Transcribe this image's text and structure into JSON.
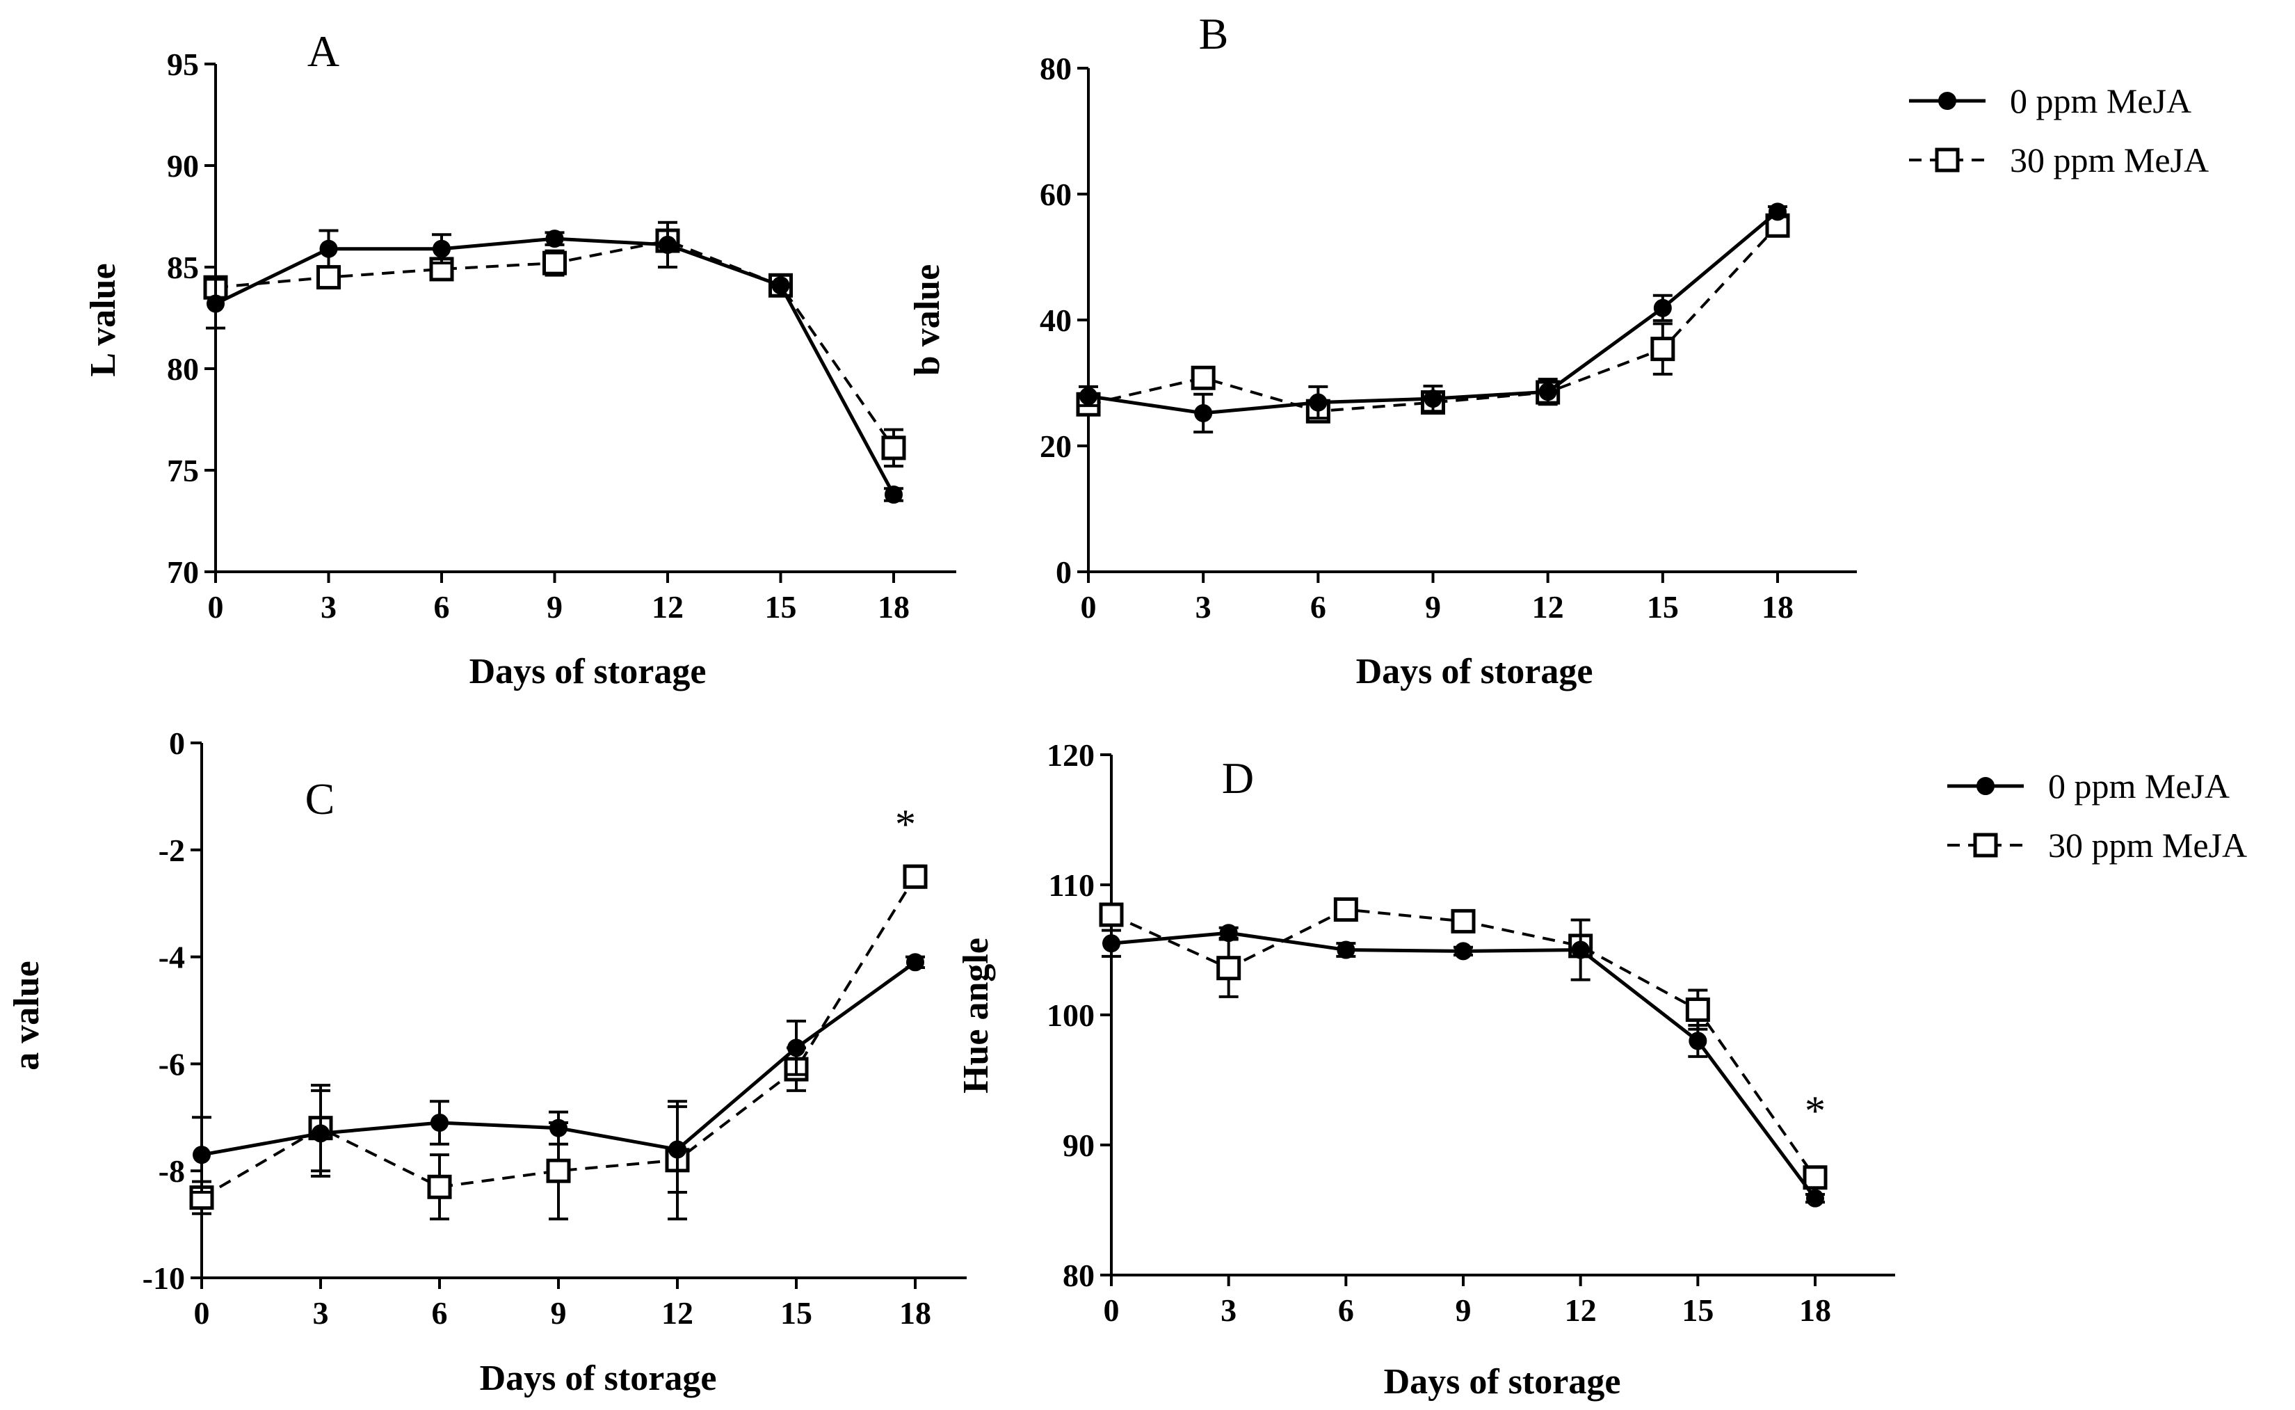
{
  "chart_data": [
    {
      "type": "line",
      "panel": "A",
      "xlabel": "Days of storage",
      "ylabel": "L value",
      "x": [
        0,
        3,
        6,
        9,
        12,
        15,
        18
      ],
      "xticks": [
        "0",
        "3",
        "6",
        "9",
        "12",
        "15",
        "18"
      ],
      "ylim": [
        70,
        95
      ],
      "yticks": [
        "70",
        "75",
        "80",
        "85",
        "90",
        "95"
      ],
      "series": [
        {
          "name": "0 ppm MeJA",
          "values": [
            83.2,
            85.9,
            85.9,
            86.4,
            86.1,
            84.1,
            73.8
          ],
          "errors": [
            1.2,
            0.9,
            0.7,
            0.3,
            1.1,
            0.5,
            0.3
          ]
        },
        {
          "name": "30 ppm MeJA",
          "values": [
            84.0,
            84.5,
            84.9,
            85.2,
            86.3,
            84.1,
            76.1
          ],
          "errors": [
            0.5,
            0.4,
            0.5,
            0.6,
            0.4,
            0.4,
            0.9
          ]
        }
      ]
    },
    {
      "type": "line",
      "panel": "B",
      "xlabel": "Days of storage",
      "ylabel": "b value",
      "x": [
        0,
        3,
        6,
        9,
        12,
        15,
        18
      ],
      "xticks": [
        "0",
        "3",
        "6",
        "9",
        "12",
        "15",
        "18"
      ],
      "ylim": [
        0,
        80
      ],
      "yticks": [
        "0",
        "20",
        "40",
        "60",
        "80"
      ],
      "series": [
        {
          "name": "0 ppm MeJA",
          "values": [
            27.9,
            25.2,
            26.9,
            27.5,
            28.6,
            41.9,
            57.2
          ],
          "errors": [
            1.5,
            3.0,
            2.5,
            2.0,
            2.0,
            2.0,
            0.8
          ]
        },
        {
          "name": "30 ppm MeJA",
          "values": [
            26.6,
            30.8,
            25.5,
            26.9,
            28.5,
            35.4,
            55.0
          ],
          "errors": [
            1.0,
            1.5,
            1.5,
            1.5,
            1.5,
            4.0,
            1.0
          ]
        }
      ]
    },
    {
      "type": "line",
      "panel": "C",
      "xlabel": "Days of storage",
      "ylabel": "a value",
      "x": [
        0,
        3,
        6,
        9,
        12,
        15,
        18
      ],
      "xticks": [
        "0",
        "3",
        "6",
        "9",
        "12",
        "15",
        "18"
      ],
      "ylim": [
        -10,
        0
      ],
      "yticks": [
        "-10",
        "-8",
        "-6",
        "-4",
        "-2",
        "0"
      ],
      "annotation": "*",
      "series": [
        {
          "name": "0 ppm MeJA",
          "values": [
            -7.7,
            -7.3,
            -7.1,
            -7.2,
            -7.6,
            -5.7,
            -4.1
          ],
          "errors": [
            0.7,
            0.8,
            0.4,
            0.3,
            0.8,
            0.5,
            0.1
          ]
        },
        {
          "name": "30 ppm MeJA",
          "values": [
            -8.5,
            -7.2,
            -8.3,
            -8.0,
            -7.8,
            -6.1,
            -2.5
          ],
          "errors": [
            0.3,
            0.8,
            0.6,
            0.9,
            1.1,
            0.4,
            0.2
          ]
        }
      ]
    },
    {
      "type": "line",
      "panel": "D",
      "xlabel": "Days of storage",
      "ylabel": "Hue angle",
      "x": [
        0,
        3,
        6,
        9,
        12,
        15,
        18
      ],
      "xticks": [
        "0",
        "3",
        "6",
        "9",
        "12",
        "15",
        "18"
      ],
      "ylim": [
        80,
        120
      ],
      "yticks": [
        "80",
        "90",
        "100",
        "110",
        "120"
      ],
      "annotation": "*",
      "series": [
        {
          "name": "0 ppm MeJA",
          "values": [
            105.5,
            106.3,
            105.0,
            104.9,
            105.0,
            98.0,
            85.9
          ],
          "errors": [
            1.0,
            0.4,
            0.5,
            0.3,
            2.3,
            1.2,
            0.3
          ]
        },
        {
          "name": "30 ppm MeJA",
          "values": [
            107.7,
            103.6,
            108.1,
            107.2,
            105.3,
            100.4,
            87.5
          ],
          "errors": [
            0.6,
            2.2,
            0.6,
            0.4,
            0.6,
            1.5,
            0.6
          ]
        }
      ]
    }
  ],
  "legends": [
    {
      "panel": "B",
      "entries": [
        "0 ppm MeJA",
        "30 ppm MeJA"
      ]
    },
    {
      "panel": "D",
      "entries": [
        "0 ppm MeJA",
        "30 ppm MeJA"
      ]
    }
  ]
}
